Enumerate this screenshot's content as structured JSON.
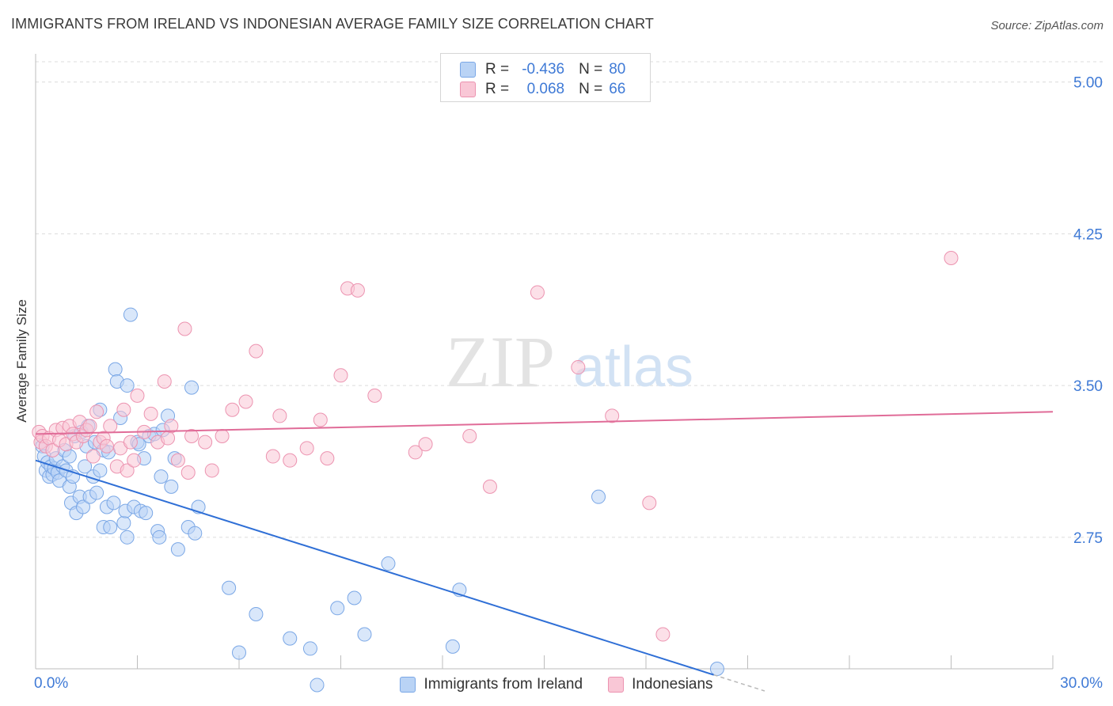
{
  "title": "IMMIGRANTS FROM IRELAND VS INDONESIAN AVERAGE FAMILY SIZE CORRELATION CHART",
  "source": "Source: ZipAtlas.com",
  "watermark": {
    "zip": "ZIP",
    "atlas": "atlas"
  },
  "legend_top": {
    "r_label": "R =",
    "n_label": "N =",
    "rows": [
      {
        "r": "-0.436",
        "n": "80",
        "color": "blue"
      },
      {
        "r": "0.068",
        "n": "66",
        "color": "pink"
      }
    ]
  },
  "bottom_legend": [
    "Immigrants from Ireland",
    "Indonesians"
  ],
  "colors": {
    "blue_fill": "#b9d3f5",
    "blue_stroke": "#7aa7e6",
    "blue_line": "#2f6fd6",
    "pink_fill": "#f9c7d6",
    "pink_stroke": "#ec93b0",
    "pink_line": "#e06c98",
    "tick_text": "#3f7ad6",
    "grid": "#dcdcdc"
  },
  "chart_data": {
    "type": "scatter",
    "title": "IMMIGRANTS FROM IRELAND VS INDONESIAN AVERAGE FAMILY SIZE CORRELATION CHART",
    "xlabel": "",
    "ylabel": "Average Family Size",
    "xlim": [
      0,
      30
    ],
    "ylim": [
      2.1,
      5.1
    ],
    "x_tick_labels": [
      "0.0%",
      "30.0%"
    ],
    "y_ticks": [
      2.75,
      3.5,
      4.25,
      5.0
    ],
    "y_tick_labels": [
      "2.75",
      "3.50",
      "4.25",
      "5.00"
    ],
    "grid": true,
    "legend_placement": "top-center",
    "series": [
      {
        "name": "Immigrants from Ireland",
        "r": -0.436,
        "n": 80,
        "trend": {
          "x0": 0,
          "y0": 3.13,
          "x1": 20,
          "y1": 2.07,
          "dashed_to_x": 21.5
        },
        "points": [
          [
            0.2,
            3.2
          ],
          [
            0.25,
            3.15
          ],
          [
            0.3,
            3.08
          ],
          [
            0.35,
            3.12
          ],
          [
            0.4,
            3.05
          ],
          [
            0.45,
            3.1
          ],
          [
            0.5,
            3.06
          ],
          [
            0.55,
            3.09
          ],
          [
            0.6,
            3.14
          ],
          [
            0.65,
            3.07
          ],
          [
            0.7,
            3.03
          ],
          [
            0.8,
            3.1
          ],
          [
            0.85,
            3.18
          ],
          [
            0.9,
            3.08
          ],
          [
            1.0,
            3.15
          ],
          [
            1.0,
            3.0
          ],
          [
            1.05,
            2.92
          ],
          [
            1.1,
            3.05
          ],
          [
            1.15,
            3.25
          ],
          [
            1.2,
            2.87
          ],
          [
            1.3,
            2.95
          ],
          [
            1.35,
            3.27
          ],
          [
            1.4,
            2.9
          ],
          [
            1.45,
            3.1
          ],
          [
            1.5,
            3.2
          ],
          [
            1.55,
            3.3
          ],
          [
            1.6,
            2.95
          ],
          [
            1.7,
            3.05
          ],
          [
            1.75,
            3.22
          ],
          [
            1.8,
            2.97
          ],
          [
            1.9,
            3.08
          ],
          [
            1.9,
            3.38
          ],
          [
            2.0,
            3.18
          ],
          [
            2.0,
            2.8
          ],
          [
            2.1,
            2.9
          ],
          [
            2.15,
            3.17
          ],
          [
            2.2,
            2.8
          ],
          [
            2.3,
            2.92
          ],
          [
            2.35,
            3.58
          ],
          [
            2.4,
            3.52
          ],
          [
            2.5,
            3.34
          ],
          [
            2.6,
            2.82
          ],
          [
            2.65,
            2.88
          ],
          [
            2.7,
            2.75
          ],
          [
            2.7,
            3.5
          ],
          [
            2.8,
            3.85
          ],
          [
            2.9,
            2.9
          ],
          [
            3.0,
            3.22
          ],
          [
            3.05,
            3.21
          ],
          [
            3.1,
            2.88
          ],
          [
            3.2,
            3.14
          ],
          [
            3.25,
            2.87
          ],
          [
            3.35,
            3.25
          ],
          [
            3.5,
            3.26
          ],
          [
            3.6,
            2.78
          ],
          [
            3.65,
            2.75
          ],
          [
            3.7,
            3.05
          ],
          [
            3.75,
            3.28
          ],
          [
            3.9,
            3.35
          ],
          [
            4.0,
            3.0
          ],
          [
            4.1,
            3.14
          ],
          [
            4.2,
            2.69
          ],
          [
            4.5,
            2.8
          ],
          [
            4.6,
            3.49
          ],
          [
            4.7,
            2.77
          ],
          [
            4.8,
            2.9
          ],
          [
            5.7,
            2.5
          ],
          [
            6.0,
            2.18
          ],
          [
            6.5,
            2.37
          ],
          [
            7.5,
            2.25
          ],
          [
            8.1,
            2.2
          ],
          [
            8.3,
            2.02
          ],
          [
            8.9,
            2.4
          ],
          [
            9.4,
            2.45
          ],
          [
            9.7,
            2.27
          ],
          [
            10.4,
            2.62
          ],
          [
            12.3,
            2.21
          ],
          [
            12.5,
            2.49
          ],
          [
            16.6,
            2.95
          ],
          [
            20.1,
            2.1
          ]
        ]
      },
      {
        "name": "Indonesians",
        "r": 0.068,
        "n": 66,
        "trend": {
          "x0": 0,
          "y0": 3.26,
          "x1": 30,
          "y1": 3.37
        },
        "points": [
          [
            0.1,
            3.27
          ],
          [
            0.15,
            3.22
          ],
          [
            0.2,
            3.25
          ],
          [
            0.3,
            3.2
          ],
          [
            0.4,
            3.24
          ],
          [
            0.5,
            3.18
          ],
          [
            0.6,
            3.28
          ],
          [
            0.7,
            3.23
          ],
          [
            0.8,
            3.29
          ],
          [
            0.9,
            3.21
          ],
          [
            1.0,
            3.3
          ],
          [
            1.1,
            3.26
          ],
          [
            1.2,
            3.22
          ],
          [
            1.3,
            3.32
          ],
          [
            1.4,
            3.25
          ],
          [
            1.5,
            3.28
          ],
          [
            1.6,
            3.3
          ],
          [
            1.7,
            3.15
          ],
          [
            1.8,
            3.37
          ],
          [
            1.9,
            3.22
          ],
          [
            2.0,
            3.24
          ],
          [
            2.1,
            3.2
          ],
          [
            2.2,
            3.3
          ],
          [
            2.4,
            3.1
          ],
          [
            2.5,
            3.19
          ],
          [
            2.6,
            3.38
          ],
          [
            2.7,
            3.08
          ],
          [
            2.8,
            3.22
          ],
          [
            2.9,
            3.13
          ],
          [
            3.0,
            3.45
          ],
          [
            3.2,
            3.27
          ],
          [
            3.4,
            3.36
          ],
          [
            3.6,
            3.22
          ],
          [
            3.8,
            3.52
          ],
          [
            3.9,
            3.24
          ],
          [
            4.0,
            3.3
          ],
          [
            4.2,
            3.13
          ],
          [
            4.4,
            3.78
          ],
          [
            4.5,
            3.07
          ],
          [
            4.6,
            3.25
          ],
          [
            5.0,
            3.22
          ],
          [
            5.2,
            3.08
          ],
          [
            5.5,
            3.25
          ],
          [
            5.8,
            3.38
          ],
          [
            6.2,
            3.42
          ],
          [
            6.5,
            3.67
          ],
          [
            7.0,
            3.15
          ],
          [
            7.2,
            3.35
          ],
          [
            7.5,
            3.13
          ],
          [
            8.0,
            3.19
          ],
          [
            8.4,
            3.33
          ],
          [
            8.6,
            3.14
          ],
          [
            9.0,
            3.55
          ],
          [
            9.2,
            3.98
          ],
          [
            9.5,
            3.97
          ],
          [
            10.0,
            3.45
          ],
          [
            11.2,
            3.17
          ],
          [
            11.5,
            3.21
          ],
          [
            12.8,
            3.25
          ],
          [
            13.4,
            3.0
          ],
          [
            14.8,
            3.96
          ],
          [
            16.0,
            3.59
          ],
          [
            17.0,
            3.35
          ],
          [
            18.1,
            2.92
          ],
          [
            18.5,
            2.27
          ],
          [
            27.0,
            4.13
          ]
        ]
      }
    ]
  }
}
